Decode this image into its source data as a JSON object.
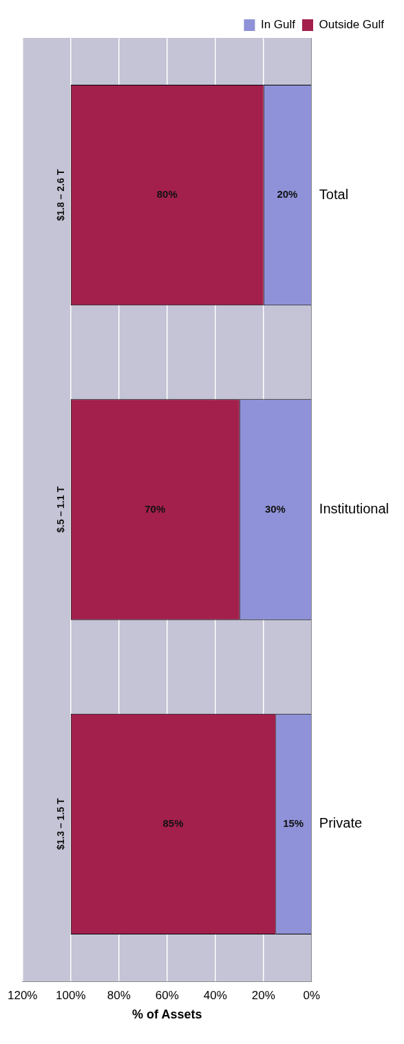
{
  "chart_data": {
    "type": "bar",
    "orientation": "horizontal",
    "stacked": true,
    "categories": [
      "Total",
      "Institutional",
      "Private"
    ],
    "series": [
      {
        "name": "In Gulf",
        "color": "#8f92d8",
        "values": [
          20,
          30,
          15
        ],
        "value_labels": [
          "20%",
          "30%",
          "15%"
        ]
      },
      {
        "name": "Outside Gulf",
        "color": "#a3204c",
        "values": [
          80,
          70,
          85
        ],
        "value_labels": [
          "80%",
          "70%",
          "85%"
        ]
      }
    ],
    "xlim": [
      120,
      0
    ],
    "xticks": [
      {
        "value": 120,
        "label": "120%"
      },
      {
        "value": 100,
        "label": "100%"
      },
      {
        "value": 80,
        "label": "80%"
      },
      {
        "value": 60,
        "label": "60%"
      },
      {
        "value": 40,
        "label": "40%"
      },
      {
        "value": 20,
        "label": "20%"
      },
      {
        "value": 0,
        "label": "0%"
      }
    ],
    "xlabel": "% of Assets",
    "grid": "x",
    "legend": "top right",
    "annotations": [
      "$1.8 – 2.6 T",
      "$.5 – 1.1 T",
      "$1.3 – 1.5 T"
    ]
  }
}
